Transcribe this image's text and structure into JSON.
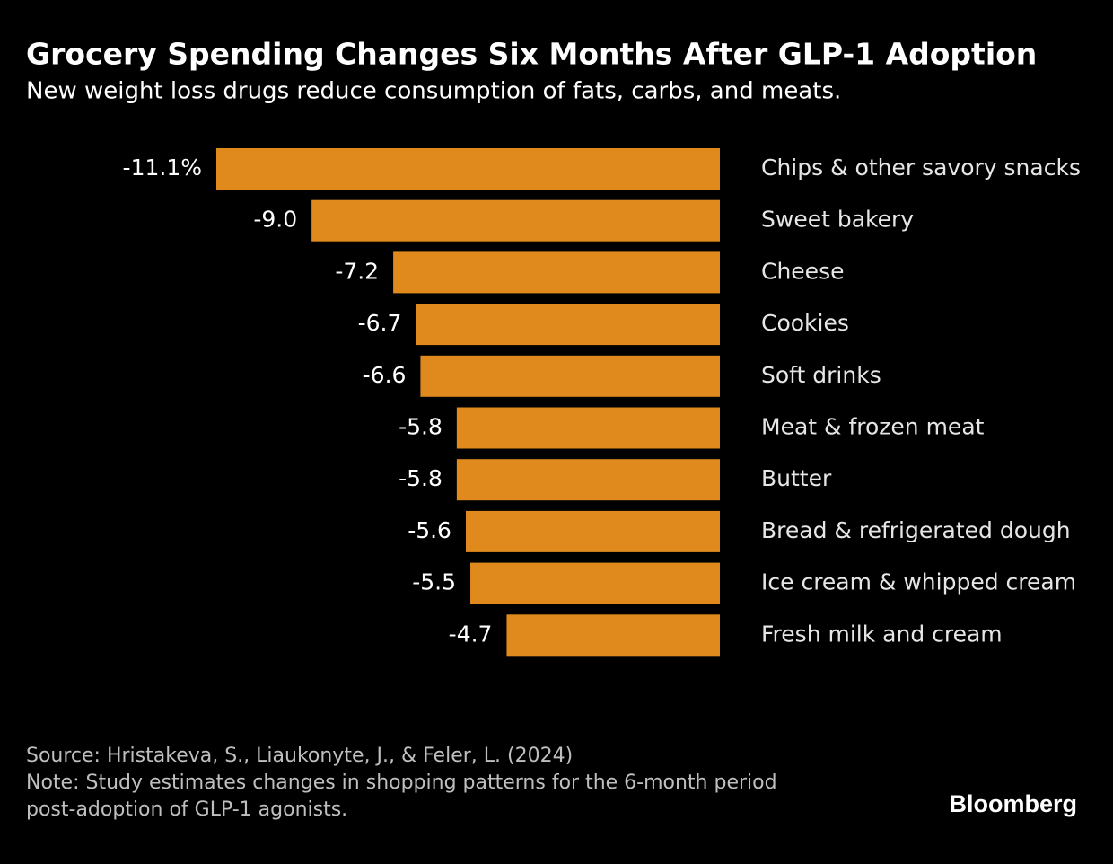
{
  "chart_data": {
    "type": "bar",
    "orientation": "horizontal",
    "title": "Grocery Spending Changes Six Months After GLP-1 Adoption",
    "subtitle": "New weight loss drugs reduce consumption of fats, carbs, and meats.",
    "categories": [
      "Chips & other savory snacks",
      "Sweet bakery",
      "Cheese",
      "Cookies",
      "Soft drinks",
      "Meat & frozen meat",
      "Butter",
      "Bread & refrigerated dough",
      "Ice cream & whipped cream",
      "Fresh milk and cream"
    ],
    "values": [
      -11.1,
      -9.0,
      -7.2,
      -6.7,
      -6.6,
      -5.8,
      -5.8,
      -5.6,
      -5.5,
      -4.7
    ],
    "value_labels": [
      "-11.1%",
      "-9.0",
      "-7.2",
      "-6.7",
      "-6.6",
      "-5.8",
      "-5.8",
      "-5.6",
      "-5.5",
      "-4.7"
    ],
    "color": "#e08a1e",
    "source": "Source: Hristakeva, S., Liaukonyte, J., & Feler, L. (2024)",
    "note": [
      "Note: Study estimates changes in shopping patterns for the 6-month period",
      "post-adoption of GLP-1 agonists."
    ],
    "brand": "Bloomberg"
  }
}
